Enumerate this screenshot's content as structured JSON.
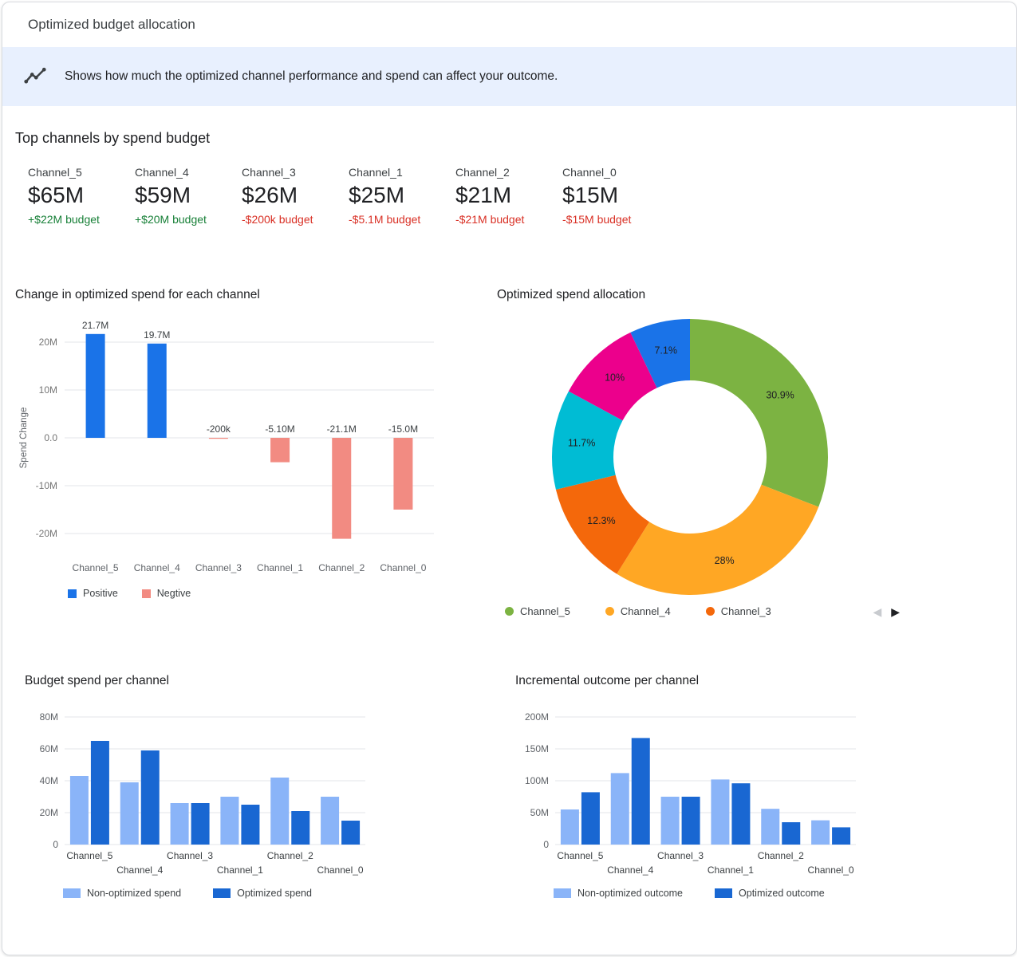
{
  "header": {
    "title": "Optimized budget allocation"
  },
  "banner": {
    "icon": "insights-icon",
    "text": "Shows how much the optimized channel performance and spend can affect your outcome."
  },
  "top_channels": {
    "title": "Top channels by spend budget",
    "cards": [
      {
        "name": "Channel_5",
        "value": "$65M",
        "delta": "+$22M budget"
      },
      {
        "name": "Channel_4",
        "value": "$59M",
        "delta": "+$20M budget"
      },
      {
        "name": "Channel_3",
        "value": "$26M",
        "delta": "-$200k budget"
      },
      {
        "name": "Channel_1",
        "value": "$25M",
        "delta": "-$5.1M budget"
      },
      {
        "name": "Channel_2",
        "value": "$21M",
        "delta": "-$21M budget"
      },
      {
        "name": "Channel_0",
        "value": "$15M",
        "delta": "-$15M budget"
      }
    ]
  },
  "colors": {
    "positive_text": "#188038",
    "negative_text": "#D93025",
    "banner_bg": "#E8F0FE",
    "grid": "#E3E5E8",
    "axis_text": "#757575",
    "label_text": "#3C4043"
  },
  "chart_data": [
    {
      "type": "bar",
      "title": "Change in optimized spend for each channel",
      "ylabel": "Spend Change",
      "categories": [
        "Channel_5",
        "Channel_4",
        "Channel_3",
        "Channel_1",
        "Channel_2",
        "Channel_0"
      ],
      "values_millions": [
        21.7,
        19.7,
        -0.2,
        -5.1,
        -21.1,
        -15.0
      ],
      "bar_labels": [
        "21.7M",
        "19.7M",
        "-200k",
        "-5.10M",
        "-21.1M",
        "-15.0M"
      ],
      "yticks": [
        {
          "v": 20,
          "label": "20M"
        },
        {
          "v": 10,
          "label": "10M"
        },
        {
          "v": 0,
          "label": "0.0"
        },
        {
          "v": -10,
          "label": "-10M"
        },
        {
          "v": -20,
          "label": "-20M"
        }
      ],
      "ylim": [
        -25,
        25
      ],
      "grid": true,
      "positive_color": "#1A73E8",
      "negative_color": "#F28B82",
      "legend": [
        {
          "label": "Positive",
          "color": "#1A73E8"
        },
        {
          "label": "Negtive",
          "color": "#F28B82"
        }
      ],
      "legend_position": "bottom"
    },
    {
      "type": "pie",
      "title": "Optimized spend allocation",
      "donut": true,
      "start_angle_deg": 0,
      "slices": [
        {
          "label": "30.9%",
          "value": 30.9,
          "color": "#7CB342"
        },
        {
          "label": "28%",
          "value": 28,
          "color": "#FFA724"
        },
        {
          "label": "12.3%",
          "value": 12.3,
          "color": "#F4680B"
        },
        {
          "label": "11.7%",
          "value": 11.7,
          "color": "#00BCD4"
        },
        {
          "label": "10%",
          "value": 10,
          "color": "#EC008C"
        },
        {
          "label": "7.1%",
          "value": 7.1,
          "color": "#1A73E8"
        }
      ],
      "legend": [
        {
          "label": "Channel_5",
          "color": "#7CB342"
        },
        {
          "label": "Channel_4",
          "color": "#FFA724"
        },
        {
          "label": "Channel_3",
          "color": "#F4680B"
        }
      ],
      "legend_position": "bottom",
      "pagination_prev": "◀",
      "pagination_next": "▶"
    },
    {
      "type": "bar",
      "title": "Budget spend per channel",
      "unit": "M",
      "categories": [
        "Channel_5",
        "Channel_4",
        "Channel_3",
        "Channel_1",
        "Channel_2",
        "Channel_0"
      ],
      "series": [
        {
          "name": "Non-optimized spend",
          "color": "#8AB4F8",
          "values": [
            43,
            39,
            26,
            30,
            42,
            30
          ]
        },
        {
          "name": "Optimized spend",
          "color": "#1967D2",
          "values": [
            65,
            59,
            26,
            25,
            21,
            15
          ]
        }
      ],
      "yticks": [
        {
          "v": 0,
          "label": "0"
        },
        {
          "v": 20,
          "label": "20M"
        },
        {
          "v": 40,
          "label": "40M"
        },
        {
          "v": 60,
          "label": "60M"
        },
        {
          "v": 80,
          "label": "80M"
        }
      ],
      "ylim": [
        0,
        80
      ],
      "grid": true,
      "legend_position": "bottom"
    },
    {
      "type": "bar",
      "title": "Incremental outcome per channel",
      "unit": "M",
      "categories": [
        "Channel_5",
        "Channel_4",
        "Channel_3",
        "Channel_1",
        "Channel_2",
        "Channel_0"
      ],
      "series": [
        {
          "name": "Non-optimized outcome",
          "color": "#8AB4F8",
          "values": [
            55,
            112,
            75,
            102,
            56,
            38
          ]
        },
        {
          "name": "Optimized outcome",
          "color": "#1967D2",
          "values": [
            82,
            167,
            75,
            96,
            35,
            27
          ]
        }
      ],
      "yticks": [
        {
          "v": 0,
          "label": "0"
        },
        {
          "v": 50,
          "label": "50M"
        },
        {
          "v": 100,
          "label": "100M"
        },
        {
          "v": 150,
          "label": "150M"
        },
        {
          "v": 200,
          "label": "200M"
        }
      ],
      "ylim": [
        0,
        200
      ],
      "grid": true,
      "legend_position": "bottom"
    }
  ]
}
